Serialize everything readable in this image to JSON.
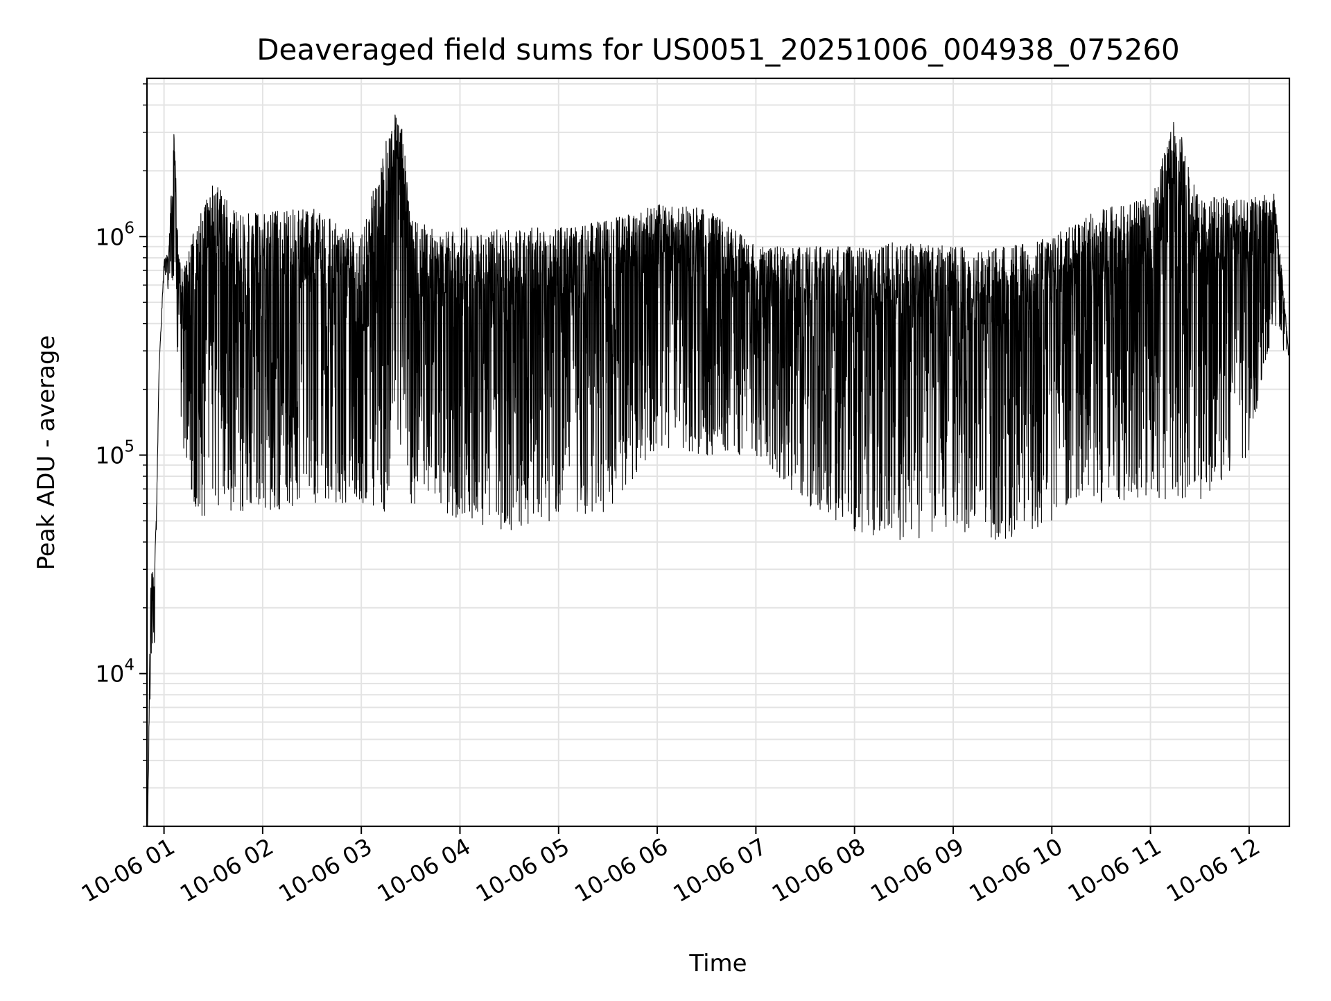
{
  "chart_data": {
    "type": "line",
    "title": "Deaveraged field sums for US0051_20251006_004938_075260",
    "xlabel": "Time",
    "ylabel": "Peak ADU - average",
    "yscale": "log",
    "ylim": [
      2000,
      5300000
    ],
    "xlim": [
      "2025-10-06 00:49:38",
      "2025-10-06 12:24:30"
    ],
    "grid": true,
    "line_color": "#000000",
    "grid_color": "#e3e3e3",
    "x_tick_labels": [
      "10-06 01",
      "10-06 02",
      "10-06 03",
      "10-06 04",
      "10-06 05",
      "10-06 06",
      "10-06 07",
      "10-06 08",
      "10-06 09",
      "10-06 10",
      "10-06 11",
      "10-06 12"
    ],
    "y_tick_labels": [
      {
        "base": "10",
        "exp": "4",
        "value": 10000
      },
      {
        "base": "10",
        "exp": "5",
        "value": 100000
      },
      {
        "base": "10",
        "exp": "6",
        "value": 1000000
      }
    ],
    "series": [
      {
        "x": [
          "2025-10-06 00:50:00",
          "2025-10-06 00:52:00",
          "2025-10-06 00:54:00",
          "2025-10-06 00:55:30",
          "2025-10-06 00:57:00",
          "2025-10-06 01:00:00",
          "2025-10-06 01:03:00",
          "2025-10-06 01:06:00",
          "2025-10-06 01:09:00",
          "2025-10-06 01:12:00",
          "2025-10-06 01:18:00",
          "2025-10-06 01:24:00",
          "2025-10-06 01:30:00",
          "2025-10-06 01:45:00",
          "2025-10-06 02:00:00",
          "2025-10-06 02:30:00",
          "2025-10-06 03:00:00",
          "2025-10-06 03:15:00",
          "2025-10-06 03:20:00",
          "2025-10-06 03:25:00",
          "2025-10-06 03:30:00",
          "2025-10-06 03:45:00",
          "2025-10-06 04:00:00",
          "2025-10-06 04:30:00",
          "2025-10-06 05:00:00",
          "2025-10-06 05:30:00",
          "2025-10-06 06:00:00",
          "2025-10-06 06:30:00",
          "2025-10-06 07:00:00",
          "2025-10-06 07:30:00",
          "2025-10-06 08:00:00",
          "2025-10-06 08:30:00",
          "2025-10-06 09:00:00",
          "2025-10-06 09:30:00",
          "2025-10-06 10:00:00",
          "2025-10-06 10:30:00",
          "2025-10-06 11:00:00",
          "2025-10-06 11:15:00",
          "2025-10-06 11:30:00",
          "2025-10-06 11:45:00",
          "2025-10-06 12:00:00",
          "2025-10-06 12:15:00",
          "2025-10-06 12:20:00",
          "2025-10-06 12:24:00"
        ],
        "upper": [
          2000,
          32000,
          28000,
          60000,
          250000,
          780000,
          900000,
          3300000,
          800000,
          700000,
          1100000,
          1400000,
          1800000,
          1300000,
          1300000,
          1350000,
          1000000,
          2800000,
          3700000,
          3300000,
          1200000,
          1100000,
          1100000,
          1100000,
          1100000,
          1200000,
          1400000,
          1350000,
          900000,
          900000,
          900000,
          950000,
          900000,
          900000,
          1000000,
          1350000,
          1500000,
          3600000,
          1500000,
          1550000,
          1500000,
          1600000,
          700000,
          300000
        ],
        "lower": [
          2000,
          12000,
          11000,
          50000,
          250000,
          700000,
          550000,
          500000,
          200000,
          100000,
          60000,
          50000,
          55000,
          55000,
          55000,
          60000,
          60000,
          55000,
          100000,
          110000,
          60000,
          55000,
          50000,
          45000,
          50000,
          55000,
          110000,
          100000,
          100000,
          60000,
          45000,
          40000,
          45000,
          40000,
          50000,
          60000,
          65000,
          60000,
          60000,
          80000,
          100000,
          400000,
          300000,
          280000
        ]
      }
    ]
  }
}
